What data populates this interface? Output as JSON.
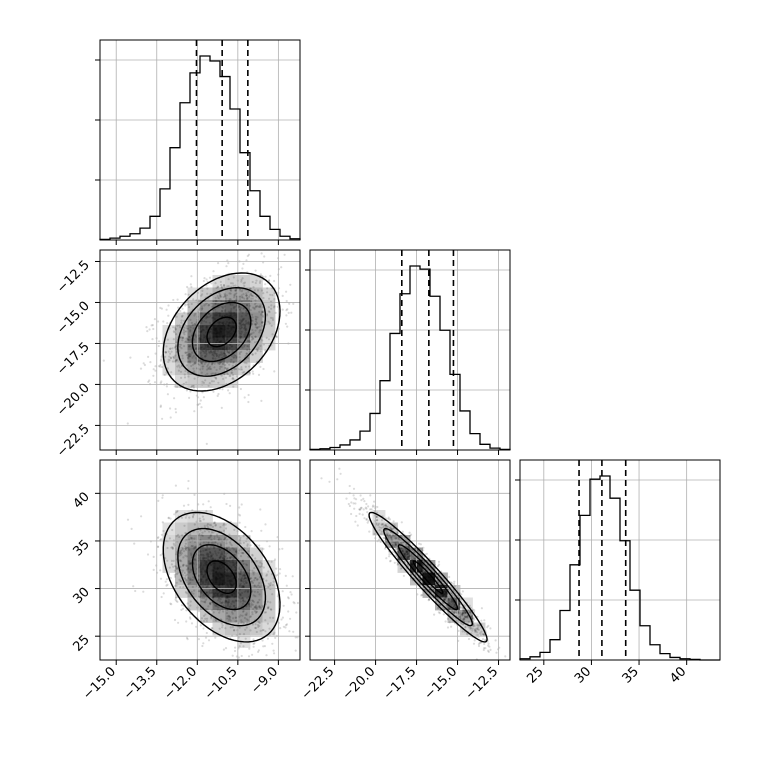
{
  "chart_data": {
    "type": "corner",
    "parameters": [
      {
        "name": "",
        "range": [
          -15.6,
          -8.2
        ],
        "ticks": [
          -15.0,
          -13.5,
          -12.0,
          -10.5,
          -9.0
        ],
        "tick_labels": [
          "−15.0",
          "−13.5",
          "−12.0",
          "−10.5",
          "−9.0"
        ],
        "quantiles": [
          -12.03,
          -11.08,
          -10.13
        ]
      },
      {
        "name": "",
        "range": [
          -24.0,
          -11.8
        ],
        "ticks": [
          -22.5,
          -20.0,
          -17.5,
          -15.0,
          -12.5
        ],
        "tick_labels": [
          "−22.5",
          "−20.0",
          "−17.5",
          "−15.0",
          "−12.5"
        ],
        "quantiles": [
          -18.4,
          -16.75,
          -15.25
        ]
      },
      {
        "name": "",
        "range": [
          22.5,
          43.5
        ],
        "ticks": [
          25,
          30,
          35,
          40
        ],
        "tick_labels": [
          "25",
          "30",
          "35",
          "40"
        ],
        "quantiles": [
          28.7,
          31.1,
          33.6
        ]
      }
    ],
    "histograms": [
      {
        "parameter": 0,
        "bin_edges": [
          -15.6,
          -15.23,
          -14.86,
          -14.49,
          -14.12,
          -13.75,
          -13.38,
          -13.01,
          -12.64,
          -12.27,
          -11.9,
          -11.53,
          -11.16,
          -10.79,
          -10.42,
          -10.05,
          -9.68,
          -9.31,
          -8.94,
          -8.57,
          -8.2
        ],
        "counts": [
          1,
          3,
          6,
          10,
          19,
          38,
          82,
          148,
          220,
          268,
          295,
          287,
          262,
          210,
          140,
          79,
          38,
          17,
          6,
          2
        ]
      },
      {
        "parameter": 1,
        "bin_edges": [
          -24.0,
          -23.39,
          -22.78,
          -22.17,
          -21.56,
          -20.95,
          -20.34,
          -19.73,
          -19.12,
          -18.51,
          -17.9,
          -17.29,
          -16.68,
          -16.07,
          -15.46,
          -14.85,
          -14.24,
          -13.63,
          -13.02,
          -12.41,
          -11.8
        ],
        "counts": [
          1,
          2,
          4,
          8,
          16,
          30,
          58,
          110,
          185,
          248,
          292,
          287,
          244,
          190,
          120,
          62,
          26,
          9,
          3,
          1
        ]
      },
      {
        "parameter": 2,
        "bin_edges": [
          22.5,
          23.55,
          24.6,
          25.65,
          26.7,
          27.75,
          28.8,
          29.85,
          30.9,
          31.95,
          33.0,
          34.05,
          35.1,
          36.15,
          37.2,
          38.25,
          39.3,
          40.35,
          41.4,
          42.45,
          43.5
        ],
        "counts": [
          2,
          5,
          12,
          32,
          78,
          150,
          228,
          285,
          290,
          255,
          188,
          110,
          54,
          24,
          10,
          4,
          2,
          1,
          0,
          0
        ]
      }
    ],
    "joint": [
      {
        "x": 0,
        "y": 1,
        "center": [
          -11.1,
          -16.8
        ],
        "sigma": [
          1.08,
          1.8
        ],
        "rho": 0.35
      },
      {
        "x": 0,
        "y": 2,
        "center": [
          -11.1,
          31.2
        ],
        "sigma": [
          1.08,
          3.4
        ],
        "rho": -0.42
      },
      {
        "x": 1,
        "y": 2,
        "center": [
          -16.8,
          31.2
        ],
        "sigma": [
          1.8,
          3.4
        ],
        "rho": -0.96
      }
    ],
    "histogram_y_ticks": 3,
    "grid": true,
    "contour_levels_sigma": [
      0.5,
      1.0,
      1.5,
      2.0
    ]
  }
}
